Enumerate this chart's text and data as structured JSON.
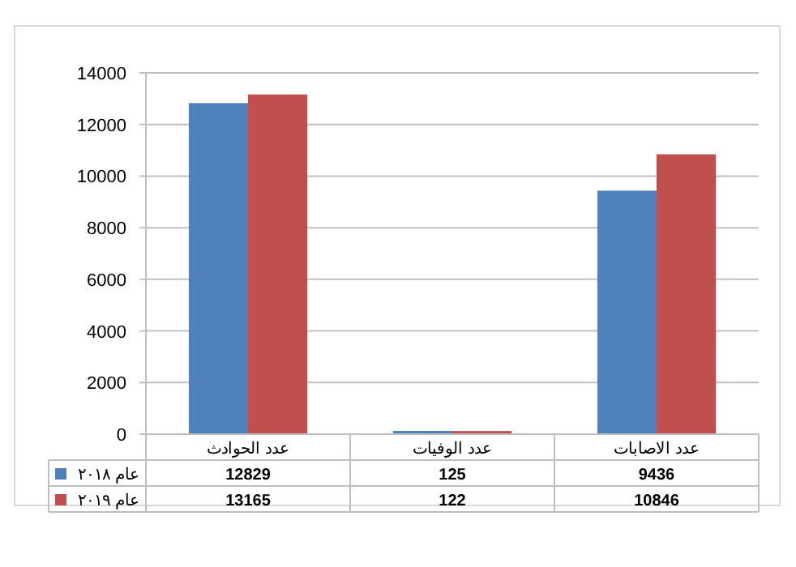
{
  "chart_data": {
    "type": "bar",
    "categories": [
      "عدد الحوادث",
      "عدد الوفيات",
      "عدد الاصابات"
    ],
    "series": [
      {
        "name": "عام ٢٠١٨",
        "color": "#4f81bd",
        "values": [
          12829,
          125,
          9436
        ]
      },
      {
        "name": "عام ٢٠١٩",
        "color": "#c0504d",
        "values": [
          13165,
          122,
          10846
        ]
      }
    ],
    "ylim": [
      0,
      14000
    ],
    "yticks": [
      0,
      2000,
      4000,
      6000,
      8000,
      10000,
      12000,
      14000
    ],
    "grid": "y",
    "legend": "bottom",
    "data_labels": true
  }
}
